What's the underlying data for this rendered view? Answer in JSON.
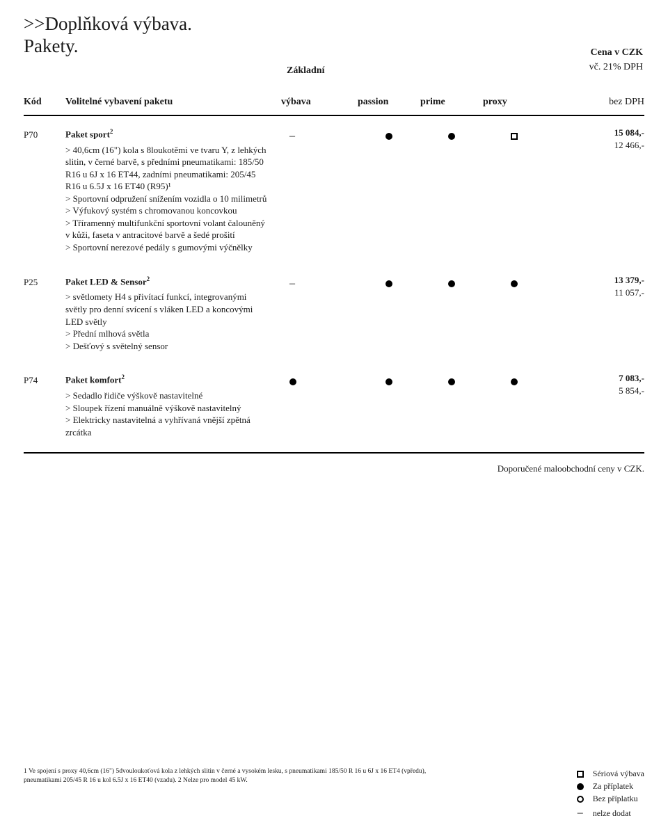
{
  "heading_line1": ">>Doplňková výbava.",
  "heading_line2": "Pakety.",
  "cena_label": "Cena v CZK",
  "vc_label": "vč. 21% DPH",
  "zakladni_label": "Základní",
  "header": {
    "kod": "Kód",
    "volitelne": "Volitelné vybavení paketu",
    "vybava": "výbava",
    "passion": "passion",
    "prime": "prime",
    "proxy": "proxy",
    "bez": "bez DPH"
  },
  "rows": [
    {
      "code": "P70",
      "title": "Paket sport",
      "title_sup": "2",
      "details_html": "> 40,6cm (16\") kola s 8loukotěmi ve tvaru Y, z lehkých slitin, v černé barvě, s předními pneumatikami: 185/50 R16 u 6J x 16 ET44, zadními pneumatikami: 205/45 R16 u 6.5J x 16 ET40 (R95)¹\n> Sportovní odpružení snížením vozidla o 10 milimetrů\n> Výfukový systém s chromovanou koncovkou\n> Tříramenný multifunkční sportovní volant čalouněný v kůži, faseta v antracitové barvě a šedé prošití\n> Sportovní nerezové pedály s gumovými výčnělky",
      "marks": [
        "dash",
        "dot",
        "dot",
        "squareopen"
      ],
      "price_incl": "15 084,-",
      "price_excl": "12 466,-"
    },
    {
      "code": "P25",
      "title": "Paket LED & Sensor",
      "title_sup": "2",
      "details_html": "> světlomety H4 s přivítací funkcí, integrovanými světly pro denní svícení s vláken LED a koncovými LED světly\n> Přední mlhová světla\n> Dešťový s světelný sensor",
      "marks": [
        "dash",
        "dot",
        "dot",
        "dot"
      ],
      "price_incl": "13 379,-",
      "price_excl": "11 057,-"
    },
    {
      "code": "P74",
      "title": "Paket komfort",
      "title_sup": "2",
      "details_html": "> Sedadlo řidiče výškově nastavitelné\n> Sloupek řízení manuálně výškově nastavitelný\n> Elektricky nastavitelná a vyhřívaná vnější zpětná zrcátka",
      "marks": [
        "dot",
        "dot",
        "dot",
        "dot"
      ],
      "price_incl": "7 083,-",
      "price_excl": "5 854,-"
    }
  ],
  "recommended": "Doporučené maloobchodní ceny v CZK.",
  "footnote": "1 Ve spojení s proxy 40,6cm (16\") 5dvouloukoťová kola z lehkých slitin v černé a vysokém lesku, s pneumatikami 185/50 R 16 u 6J x 16 ET4 (vpředu), pneumatikami 205/45 R 16 u kol 6.5J x 16 ET40 (vzadu). 2 Nelze pro model 45 kW.",
  "legend": {
    "seriova": "Sériová výbava",
    "zapriplatek": "Za příplatek",
    "bezpriplatku": "Bez příplatku",
    "nelze": "nelze dodat"
  }
}
